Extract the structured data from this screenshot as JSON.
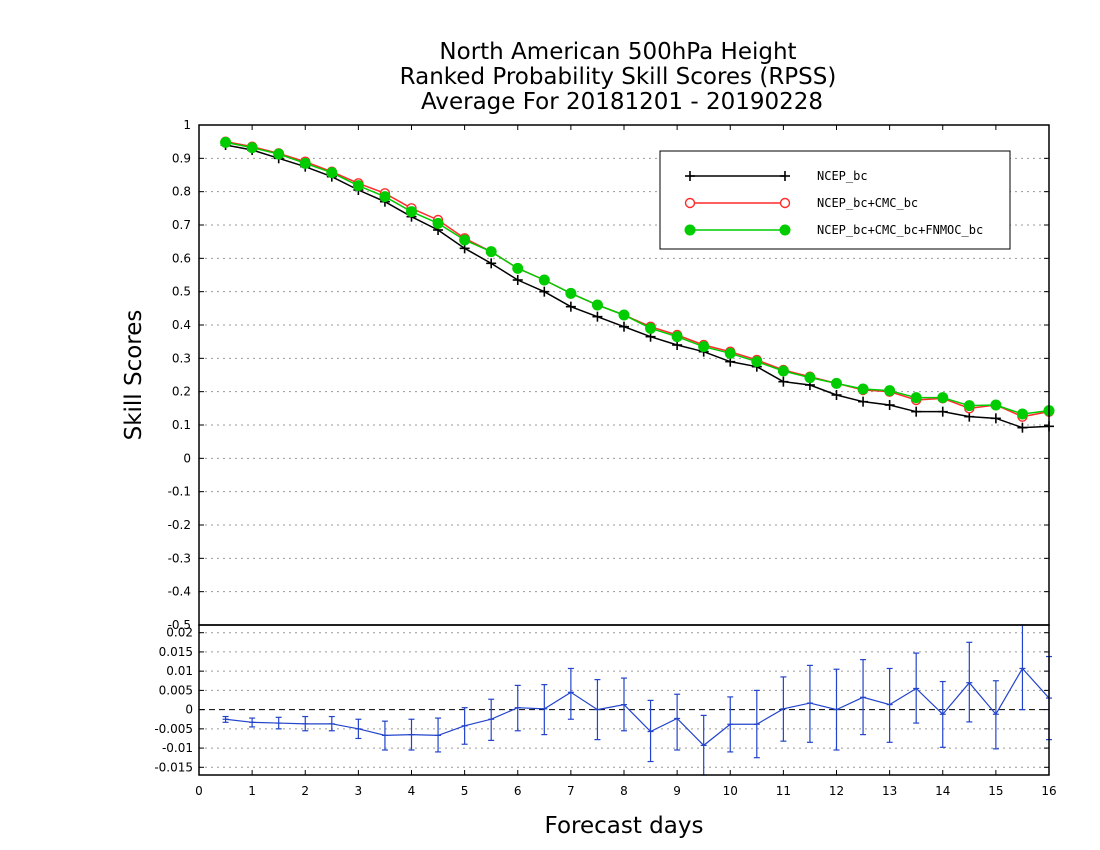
{
  "chart_data": [
    {
      "type": "line",
      "title": [
        "North American 500hPa Height",
        "Ranked Probability Skill Scores (RPSS)",
        "Average For 20181201 - 20190228"
      ],
      "ylabel": "Skill Scores",
      "ylim": [
        -0.5,
        1
      ],
      "yticks": [
        "1",
        "0.9",
        "0.8",
        "0.7",
        "0.6",
        "0.5",
        "0.4",
        "0.3",
        "0.2",
        "0.1",
        "0",
        "-0.1",
        "-0.2",
        "-0.3",
        "-0.4",
        "-0.5"
      ],
      "grid": true,
      "legend_position": "top-right",
      "x": [
        0.5,
        1,
        1.5,
        2,
        2.5,
        3,
        3.5,
        4,
        4.5,
        5,
        5.5,
        6,
        6.5,
        7,
        7.5,
        8,
        8.5,
        9,
        9.5,
        10,
        10.5,
        11,
        11.5,
        12,
        12.5,
        13,
        13.5,
        14,
        14.5,
        15,
        15.5,
        16
      ],
      "series": [
        {
          "name": "NCEP_bc",
          "color": "#000000",
          "marker": "plus",
          "values": [
            0.94,
            0.925,
            0.9,
            0.875,
            0.845,
            0.805,
            0.77,
            0.725,
            0.685,
            0.63,
            0.585,
            0.535,
            0.5,
            0.455,
            0.425,
            0.395,
            0.365,
            0.34,
            0.32,
            0.29,
            0.275,
            0.23,
            0.22,
            0.19,
            0.17,
            0.16,
            0.14,
            0.14,
            0.125,
            0.12,
            0.092,
            0.096
          ]
        },
        {
          "name": "NCEP_bc+CMC_bc",
          "color": "#ff2a2a",
          "marker": "open-circle",
          "values": [
            0.95,
            0.935,
            0.915,
            0.89,
            0.86,
            0.825,
            0.795,
            0.75,
            0.715,
            0.66,
            0.62,
            0.57,
            0.535,
            0.495,
            0.46,
            0.43,
            0.395,
            0.37,
            0.34,
            0.32,
            0.295,
            0.265,
            0.245,
            0.225,
            0.205,
            0.2,
            0.175,
            0.18,
            0.15,
            0.16,
            0.125,
            0.14
          ]
        },
        {
          "name": "NCEP_bc+CMC_bc+FNMOC_bc",
          "color": "#00cc00",
          "marker": "filled-circle",
          "values": [
            0.948,
            0.932,
            0.913,
            0.885,
            0.857,
            0.818,
            0.785,
            0.74,
            0.705,
            0.655,
            0.62,
            0.57,
            0.535,
            0.495,
            0.46,
            0.43,
            0.39,
            0.365,
            0.335,
            0.315,
            0.29,
            0.262,
            0.242,
            0.225,
            0.208,
            0.203,
            0.182,
            0.182,
            0.158,
            0.16,
            0.133,
            0.143
          ]
        }
      ]
    },
    {
      "type": "line",
      "xlabel": "Forecast days",
      "xlim": [
        0,
        16
      ],
      "xticks": [
        "0",
        "1",
        "2",
        "3",
        "4",
        "5",
        "6",
        "7",
        "8",
        "9",
        "10",
        "11",
        "12",
        "13",
        "14",
        "15",
        "16"
      ],
      "ylim": [
        -0.017,
        0.022
      ],
      "yticks": [
        "0.02",
        "0.015",
        "0.01",
        "0.005",
        "0",
        "-0.005",
        "-0.01",
        "-0.015"
      ],
      "grid": true,
      "series": [
        {
          "name": "",
          "color": "#2244cc",
          "x": [
            0.5,
            1,
            1.5,
            2,
            2.5,
            3,
            3.5,
            4,
            4.5,
            5,
            5.5,
            6,
            6.5,
            7,
            7.5,
            8,
            8.5,
            9,
            9.5,
            10,
            10.5,
            11,
            11.5,
            12,
            12.5,
            13,
            13.5,
            14,
            14.5,
            15,
            15.5,
            16
          ],
          "values": [
            -0.0025,
            -0.0033,
            -0.0035,
            -0.0037,
            -0.0037,
            -0.005,
            -0.0067,
            -0.0065,
            -0.0067,
            -0.0042,
            -0.0025,
            0.0005,
            0.0002,
            0.0045,
            0,
            0.0013,
            -0.0057,
            -0.0023,
            -0.0093,
            -0.0038,
            -0.0038,
            0.0002,
            0.0017,
            0,
            0.0032,
            0.0013,
            0.0055,
            -0.0012,
            0.007,
            -0.0012,
            0.0107,
            0.003
          ],
          "err_low": [
            -0.0033,
            -0.0045,
            -0.005,
            -0.0055,
            -0.0055,
            -0.0075,
            -0.0105,
            -0.0105,
            -0.011,
            -0.009,
            -0.008,
            -0.0055,
            -0.0065,
            -0.0025,
            -0.0078,
            -0.0055,
            -0.0135,
            -0.0105,
            -0.017,
            -0.011,
            -0.0125,
            -0.0082,
            -0.0085,
            -0.0105,
            -0.0065,
            -0.0085,
            -0.0035,
            -0.0098,
            -0.0032,
            -0.0102,
            0,
            -0.0078
          ],
          "err_high": [
            -0.0018,
            -0.0022,
            -0.002,
            -0.0018,
            -0.0018,
            -0.0025,
            -0.003,
            -0.0025,
            -0.0022,
            0.0005,
            0.0027,
            0.0063,
            0.0065,
            0.0107,
            0.0078,
            0.0082,
            0.0024,
            0.004,
            -0.0015,
            0.0033,
            0.005,
            0.0085,
            0.0115,
            0.0105,
            0.013,
            0.0107,
            0.0147,
            0.0073,
            0.0175,
            0.0075,
            0.0225,
            0.0138
          ]
        }
      ]
    }
  ]
}
